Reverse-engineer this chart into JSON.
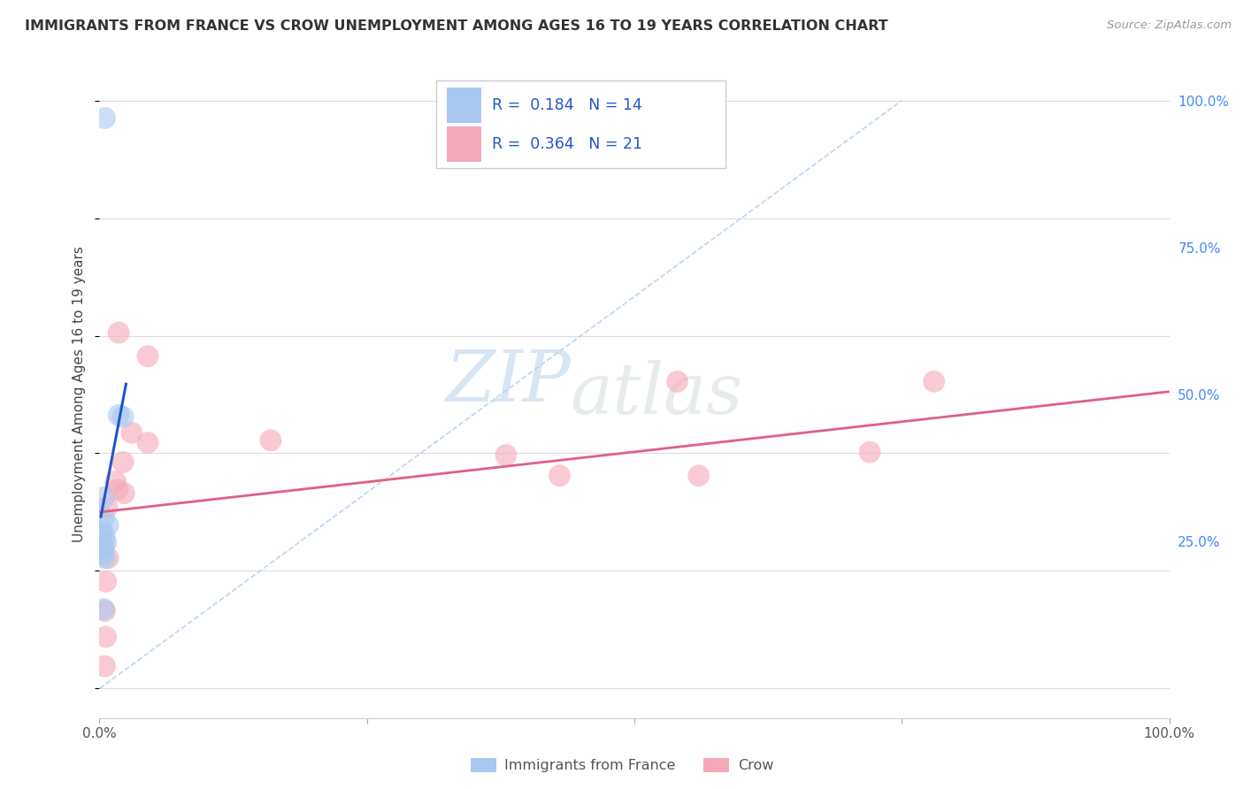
{
  "title": "IMMIGRANTS FROM FRANCE VS CROW UNEMPLOYMENT AMONG AGES 16 TO 19 YEARS CORRELATION CHART",
  "source": "Source: ZipAtlas.com",
  "ylabel": "Unemployment Among Ages 16 to 19 years",
  "xlim": [
    0.0,
    1.0
  ],
  "ylim": [
    -0.05,
    1.05
  ],
  "watermark_zip": "ZIP",
  "watermark_atlas": "atlas",
  "legend_blue_r": "0.184",
  "legend_blue_n": "14",
  "legend_pink_r": "0.364",
  "legend_pink_n": "21",
  "blue_color": "#a8c8f0",
  "pink_color": "#f5a8b8",
  "blue_scatter": [
    [
      0.005,
      0.97
    ],
    [
      0.018,
      0.465
    ],
    [
      0.022,
      0.462
    ],
    [
      0.004,
      0.325
    ],
    [
      0.004,
      0.29
    ],
    [
      0.008,
      0.278
    ],
    [
      0.003,
      0.265
    ],
    [
      0.005,
      0.258
    ],
    [
      0.006,
      0.248
    ],
    [
      0.004,
      0.242
    ],
    [
      0.003,
      0.237
    ],
    [
      0.003,
      0.228
    ],
    [
      0.005,
      0.222
    ],
    [
      0.004,
      0.135
    ]
  ],
  "pink_scatter": [
    [
      0.018,
      0.605
    ],
    [
      0.045,
      0.565
    ],
    [
      0.03,
      0.435
    ],
    [
      0.045,
      0.418
    ],
    [
      0.022,
      0.385
    ],
    [
      0.015,
      0.352
    ],
    [
      0.017,
      0.338
    ],
    [
      0.023,
      0.332
    ],
    [
      0.007,
      0.308
    ],
    [
      0.16,
      0.422
    ],
    [
      0.38,
      0.397
    ],
    [
      0.43,
      0.362
    ],
    [
      0.54,
      0.522
    ],
    [
      0.56,
      0.362
    ],
    [
      0.72,
      0.402
    ],
    [
      0.78,
      0.522
    ],
    [
      0.008,
      0.222
    ],
    [
      0.006,
      0.182
    ],
    [
      0.005,
      0.132
    ],
    [
      0.006,
      0.088
    ],
    [
      0.005,
      0.038
    ]
  ],
  "blue_line_x": [
    0.001,
    0.025
  ],
  "blue_line_y": [
    0.29,
    0.52
  ],
  "pink_line_x": [
    0.0,
    1.0
  ],
  "pink_line_y": [
    0.3,
    0.505
  ],
  "diag_line_x": [
    0.0,
    0.75
  ],
  "diag_line_y": [
    0.0,
    1.0
  ],
  "grid_color": "#dddddd",
  "title_color": "#333333",
  "right_axis_color": "#4488ff",
  "source_color": "#999999"
}
